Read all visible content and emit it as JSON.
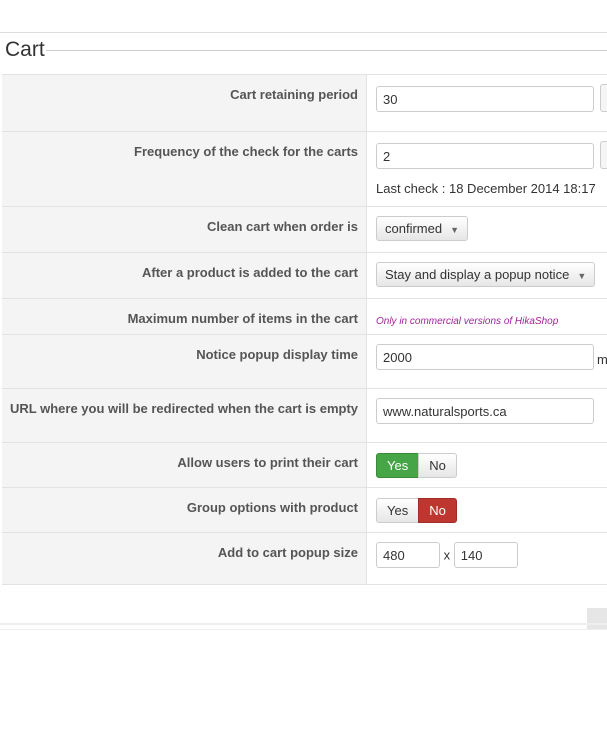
{
  "section_title": "Cart",
  "rows": {
    "retaining": {
      "label": "Cart retaining period",
      "value": "30"
    },
    "frequency": {
      "label": "Frequency of the check for the carts",
      "value": "2",
      "last_check": "Last check : 18 December 2014 18:17"
    },
    "clean": {
      "label": "Clean cart when order is",
      "selected": "confirmed"
    },
    "after_add": {
      "label": "After a product is added to the cart",
      "selected": "Stay and display a popup notice"
    },
    "max_items": {
      "label": "Maximum number of items in the cart",
      "note": "Only in commercial versions of HikaShop"
    },
    "notice_time": {
      "label": "Notice popup display time",
      "value": "2000",
      "unit": "m"
    },
    "redirect_url": {
      "label": "URL where you will be redirected when the cart is empty",
      "value": "www.naturalsports.ca"
    },
    "print": {
      "label": "Allow users to print their cart",
      "yes": "Yes",
      "no": "No",
      "selected": "Yes"
    },
    "group": {
      "label": "Group options with product",
      "yes": "Yes",
      "no": "No",
      "selected": "No"
    },
    "popup_size": {
      "label": "Add to cart popup size",
      "width": "480",
      "sep": "x",
      "height": "140"
    }
  },
  "colors": {
    "yes_active": "#46a546",
    "no_active": "#bd362f",
    "note": "#a0249c"
  }
}
